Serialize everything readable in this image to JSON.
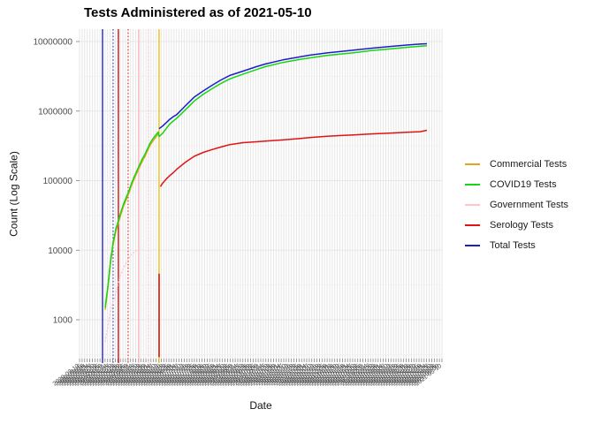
{
  "title": "Tests Administered as of 2021-05-10",
  "axes": {
    "y_title": "Count (Log Scale)",
    "x_title": "Date",
    "y_ticks": [
      {
        "label": "10000000",
        "value": 10000000
      },
      {
        "label": "1000000",
        "value": 1000000
      },
      {
        "label": "100000",
        "value": 100000
      },
      {
        "label": "10000",
        "value": 10000
      },
      {
        "label": "1000",
        "value": 1000
      }
    ],
    "x_labels": [
      "2020-03-12",
      "2020-03-15",
      "2020-03-18",
      "2020-03-21",
      "2020-03-24",
      "2020-03-27",
      "2020-03-30",
      "2020-04-02",
      "2020-04-05",
      "2020-04-08",
      "2020-04-11",
      "2020-04-14",
      "2020-04-17",
      "2020-04-20",
      "2020-04-23",
      "2020-04-26",
      "2020-04-29",
      "2020-05-02",
      "2020-05-05",
      "2020-05-08",
      "2020-05-11",
      "2020-05-14",
      "2020-05-17",
      "2020-05-20",
      "2020-05-23",
      "2020-05-26",
      "2020-05-29",
      "2020-06-01",
      "2020-06-04",
      "2020-06-07",
      "2020-06-10",
      "2020-06-13",
      "2020-06-16",
      "2020-06-19",
      "2020-06-22",
      "2020-06-25",
      "2020-06-28",
      "2020-07-01",
      "2020-07-04",
      "2020-07-07",
      "2020-07-10",
      "2020-07-13",
      "2020-07-16",
      "2020-07-19",
      "2020-07-22",
      "2020-07-25",
      "2020-07-28",
      "2020-07-31",
      "2020-08-03",
      "2020-08-06",
      "2020-08-09",
      "2020-08-12",
      "2020-08-15",
      "2020-08-18",
      "2020-08-21",
      "2020-08-24",
      "2020-08-27",
      "2020-08-30",
      "2020-09-02",
      "2020-09-05",
      "2020-09-08",
      "2020-09-11",
      "2020-09-14",
      "2020-09-17",
      "2020-09-20",
      "2020-09-23",
      "2020-09-26",
      "2020-09-29",
      "2020-10-02",
      "2020-10-05",
      "2020-10-08",
      "2020-10-11",
      "2020-10-14",
      "2020-10-17",
      "2020-10-20",
      "2020-10-23",
      "2020-10-26",
      "2020-10-29",
      "2020-11-01",
      "2020-11-04",
      "2020-11-07",
      "2020-11-10",
      "2020-11-13",
      "2020-11-16",
      "2020-11-19",
      "2020-11-22",
      "2020-11-25",
      "2020-11-28",
      "2020-12-01",
      "2020-12-04",
      "2020-12-07",
      "2020-12-10",
      "2020-12-13",
      "2020-12-16",
      "2020-12-19",
      "2020-12-22",
      "2020-12-25",
      "2020-12-28",
      "2020-12-31",
      "2021-01-03",
      "2021-01-06",
      "2021-01-09",
      "2021-01-12",
      "2021-01-15",
      "2021-01-18",
      "2021-01-21",
      "2021-01-24",
      "2021-01-27",
      "2021-01-30",
      "2021-02-02",
      "2021-02-05",
      "2021-02-08",
      "2021-02-11",
      "2021-02-14",
      "2021-02-17",
      "2021-02-20",
      "2021-02-23",
      "2021-02-26",
      "2021-03-01",
      "2021-03-04",
      "2021-03-07",
      "2021-03-10",
      "2021-03-13",
      "2021-03-16",
      "2021-03-19",
      "2021-03-22",
      "2021-03-25",
      "2021-03-28",
      "2021-03-31",
      "2021-04-03",
      "2021-04-06",
      "2021-04-09",
      "2021-04-12",
      "2021-04-15",
      "2021-04-18",
      "2021-04-21",
      "2021-04-24",
      "2021-04-27",
      "2021-04-30",
      "2021-05-03",
      "2021-05-06",
      "2021-05-09",
      "2021-05-10"
    ]
  },
  "legend": {
    "items": [
      {
        "label": "Commercial Tests",
        "color": "#E2A51D"
      },
      {
        "label": "COVID19 Tests",
        "color": "#15D615"
      },
      {
        "label": "Government Tests",
        "color": "#FFC3CC"
      },
      {
        "label": "Serology Tests",
        "color": "#E01414"
      },
      {
        "label": "Total Tests",
        "color": "#1D1DC9"
      }
    ]
  },
  "chart_data": {
    "type": "line",
    "title": "Tests Administered as of 2021-05-10",
    "xlabel": "Date",
    "ylabel": "Count (Log Scale)",
    "y_scale": "log10",
    "ylim": [
      1000,
      10000000
    ],
    "x_range": [
      "2020-03-12",
      "2021-05-10"
    ],
    "x_unit": "fraction_of_date_axis",
    "grid": "dense vertical line per date; horizontal major+minor log gridlines",
    "legend_position": "right",
    "vlines": [
      {
        "x_frac": 0.0634,
        "color": "#2121CC",
        "style": "solid"
      },
      {
        "x_frac": 0.0927,
        "color": "#2121CC",
        "style": "dotted"
      },
      {
        "x_frac": 0.1073,
        "color": "#DD1111",
        "style": "solid"
      },
      {
        "x_frac": 0.1341,
        "color": "#DD1111",
        "style": "dotted"
      },
      {
        "x_frac": 0.1634,
        "color": "#FFB6C1",
        "style": "solid"
      },
      {
        "x_frac": 0.1902,
        "color": "#FFB6C1",
        "style": "dotted"
      },
      {
        "x_frac": 0.2195,
        "color": "#F2C318",
        "style": "solid"
      }
    ],
    "series": [
      {
        "name": "Commercial Tests",
        "color": "#E2A51D",
        "width": 1.5,
        "dash": "",
        "points": [
          [
            0.0707,
            1400
          ],
          [
            0.078,
            2800
          ],
          [
            0.0854,
            6500
          ],
          [
            0.0927,
            12000
          ],
          [
            0.1,
            18600
          ],
          [
            0.1073,
            25000
          ],
          [
            0.1146,
            33500
          ],
          [
            0.122,
            43700
          ],
          [
            0.1293,
            54000
          ],
          [
            0.1366,
            67000
          ],
          [
            0.1439,
            86500
          ],
          [
            0.1512,
            107000
          ],
          [
            0.1585,
            130000
          ],
          [
            0.1659,
            158000
          ],
          [
            0.1732,
            190000
          ],
          [
            0.1805,
            223000
          ],
          [
            0.1878,
            270000
          ],
          [
            0.1951,
            325000
          ],
          [
            0.2024,
            372000
          ],
          [
            0.2098,
            418000
          ],
          [
            0.2171,
            465000
          ]
        ]
      },
      {
        "name": "Government Tests",
        "color": "#FFC3CC",
        "width": 1.2,
        "dash": "2.2 1.6",
        "points": [
          [
            0.0707,
            480
          ],
          [
            0.078,
            800
          ],
          [
            0.0854,
            1300
          ],
          [
            0.0927,
            1800
          ],
          [
            0.1,
            2400
          ],
          [
            0.1098,
            3900
          ],
          [
            0.122,
            5700
          ],
          [
            0.1341,
            7300
          ],
          [
            0.139,
            8200
          ],
          [
            0.1463,
            9000
          ],
          [
            0.1537,
            9500
          ],
          [
            0.1634,
            10500
          ],
          [
            0.1659,
            10800
          ]
        ]
      },
      {
        "name": "Total Tests",
        "color": "#1D1DC9",
        "width": 1.5,
        "dash": "",
        "points": [
          [
            0.2195,
            560000
          ],
          [
            0.2293,
            610000
          ],
          [
            0.239,
            680000
          ],
          [
            0.2488,
            760000
          ],
          [
            0.2585,
            830000
          ],
          [
            0.2683,
            890000
          ],
          [
            0.2927,
            1200000
          ],
          [
            0.3171,
            1600000
          ],
          [
            0.3415,
            1950000
          ],
          [
            0.3659,
            2350000
          ],
          [
            0.3902,
            2800000
          ],
          [
            0.4146,
            3250000
          ],
          [
            0.4512,
            3750000
          ],
          [
            0.4878,
            4350000
          ],
          [
            0.5122,
            4750000
          ],
          [
            0.561,
            5450000
          ],
          [
            0.6098,
            6050000
          ],
          [
            0.6341,
            6350000
          ],
          [
            0.6829,
            6850000
          ],
          [
            0.7561,
            7500000
          ],
          [
            0.8049,
            8000000
          ],
          [
            0.8537,
            8450000
          ],
          [
            0.9024,
            8900000
          ],
          [
            0.939,
            9200000
          ],
          [
            0.9585,
            9300000
          ]
        ]
      },
      {
        "name": "Serology Tests (initial jump)",
        "color": "#E01414",
        "width": 1.6,
        "dash": "",
        "points": [
          [
            0.2195,
            290
          ],
          [
            0.2195,
            4600
          ]
        ]
      },
      {
        "name": "Serology Tests",
        "color": "#E01414",
        "width": 1.5,
        "dash": "",
        "points": [
          [
            0.2231,
            82000
          ],
          [
            0.2293,
            92000
          ],
          [
            0.239,
            105000
          ],
          [
            0.2488,
            118000
          ],
          [
            0.2585,
            130000
          ],
          [
            0.2683,
            146000
          ],
          [
            0.2927,
            185000
          ],
          [
            0.3171,
            225000
          ],
          [
            0.3415,
            255000
          ],
          [
            0.3659,
            280000
          ],
          [
            0.3902,
            305000
          ],
          [
            0.4146,
            330000
          ],
          [
            0.4512,
            352000
          ],
          [
            0.4878,
            362000
          ],
          [
            0.5122,
            370000
          ],
          [
            0.561,
            385000
          ],
          [
            0.6098,
            405000
          ],
          [
            0.6341,
            417000
          ],
          [
            0.6829,
            435000
          ],
          [
            0.7561,
            455000
          ],
          [
            0.8049,
            470000
          ],
          [
            0.8537,
            482000
          ],
          [
            0.9024,
            495000
          ],
          [
            0.939,
            505000
          ],
          [
            0.9585,
            530000
          ]
        ]
      },
      {
        "name": "COVID19 Tests",
        "color": "#15D615",
        "width": 1.5,
        "dash": "",
        "points": [
          [
            0.0707,
            1500
          ],
          [
            0.078,
            3000
          ],
          [
            0.0854,
            7000
          ],
          [
            0.0927,
            13000
          ],
          [
            0.1,
            20000
          ],
          [
            0.1073,
            27000
          ],
          [
            0.1146,
            36000
          ],
          [
            0.122,
            47000
          ],
          [
            0.1293,
            58000
          ],
          [
            0.1366,
            72000
          ],
          [
            0.1439,
            93000
          ],
          [
            0.1512,
            115000
          ],
          [
            0.1585,
            140000
          ],
          [
            0.1659,
            170000
          ],
          [
            0.1732,
            205000
          ],
          [
            0.1805,
            240000
          ],
          [
            0.1878,
            290000
          ],
          [
            0.1951,
            350000
          ],
          [
            0.2024,
            400000
          ],
          [
            0.2098,
            450000
          ],
          [
            0.2171,
            500000
          ],
          [
            0.2195,
            430000
          ],
          [
            0.2293,
            480000
          ],
          [
            0.239,
            560000
          ],
          [
            0.2488,
            650000
          ],
          [
            0.2585,
            720000
          ],
          [
            0.2683,
            790000
          ],
          [
            0.2927,
            1050000
          ],
          [
            0.3171,
            1400000
          ],
          [
            0.3415,
            1750000
          ],
          [
            0.3659,
            2100000
          ],
          [
            0.3902,
            2500000
          ],
          [
            0.4146,
            2900000
          ],
          [
            0.4512,
            3400000
          ],
          [
            0.4878,
            3950000
          ],
          [
            0.5122,
            4350000
          ],
          [
            0.561,
            5000000
          ],
          [
            0.6098,
            5550000
          ],
          [
            0.6341,
            5800000
          ],
          [
            0.6829,
            6300000
          ],
          [
            0.7561,
            6900000
          ],
          [
            0.8049,
            7400000
          ],
          [
            0.8537,
            7800000
          ],
          [
            0.9024,
            8250000
          ],
          [
            0.939,
            8550000
          ],
          [
            0.9585,
            8700000
          ]
        ]
      }
    ]
  },
  "colors": {
    "grid_vertical": "#e6e6e6",
    "grid_major_h": "#e7e7e7",
    "grid_minor_h": "#f1f1f1",
    "tick_mark": "#7f7f7f",
    "tick_label": "#4d4d4d",
    "date_label": "#4d4d4d"
  }
}
